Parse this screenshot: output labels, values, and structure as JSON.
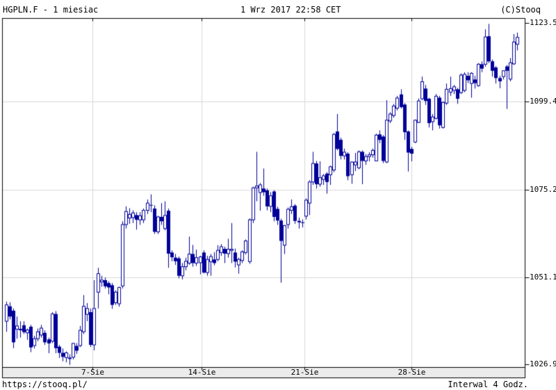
{
  "header": {
    "title": "HGPLN.F - 1 miesiac",
    "datetime": "1 Wrz 2017 22:58 CET",
    "copyright": "(C)Stooq"
  },
  "footer": {
    "url": "https://stooq.pl/",
    "interval_label": "Interwal 4 Godz."
  },
  "chart_data": {
    "type": "candlestick",
    "symbol": "HGPLN.F",
    "period": "1 miesiac",
    "interval": "4 Godz.",
    "title": "HGPLN.F - 1 miesiac",
    "y_axis": {
      "tick_labels": [
        "1123.5",
        "1099.4",
        "1075.2",
        "1051.1",
        "1026.9"
      ],
      "tick_values": [
        1123.5,
        1099.4,
        1075.2,
        1051.1,
        1026.9
      ],
      "range": [
        1026.3,
        1122.3
      ],
      "grid": true
    },
    "x_axis": {
      "tick_labels": [
        "7-Sie",
        "14-Sie",
        "21-Sie",
        "28-Sie"
      ],
      "grid": true
    },
    "colors": {
      "candle": "#000099",
      "grid": "#d8d8d8",
      "border": "#000000",
      "band_fill": "#ebebeb",
      "background": "#ffffff"
    },
    "candles_format": [
      "open",
      "high",
      "low",
      "close"
    ],
    "candles": [
      [
        1039.0,
        1044.4,
        1036.1,
        1043.5
      ],
      [
        1043.1,
        1044.2,
        1039.5,
        1040.3
      ],
      [
        1041.9,
        1042.5,
        1031.6,
        1033.2
      ],
      [
        1036.8,
        1040.3,
        1034.2,
        1037.7
      ],
      [
        1036.8,
        1039.0,
        1034.5,
        1036.8
      ],
      [
        1037.9,
        1039.0,
        1035.5,
        1036.0
      ],
      [
        1035.8,
        1037.0,
        1033.9,
        1036.6
      ],
      [
        1037.5,
        1038.0,
        1030.5,
        1031.8
      ],
      [
        1032.3,
        1035.0,
        1031.5,
        1034.2
      ],
      [
        1034.2,
        1037.0,
        1033.5,
        1036.1
      ],
      [
        1035.2,
        1038.0,
        1034.5,
        1037.1
      ],
      [
        1035.8,
        1036.5,
        1032.5,
        1033.2
      ],
      [
        1034.0,
        1034.5,
        1030.2,
        1032.9
      ],
      [
        1033.5,
        1041.5,
        1033.0,
        1041.0
      ],
      [
        1041.0,
        1041.8,
        1030.2,
        1031.6
      ],
      [
        1032.0,
        1032.5,
        1028.9,
        1030.3
      ],
      [
        1030.3,
        1031.5,
        1028.0,
        1029.2
      ],
      [
        1029.0,
        1030.7,
        1027.7,
        1030.3
      ],
      [
        1028.9,
        1029.9,
        1027.0,
        1028.9
      ],
      [
        1029.1,
        1033.0,
        1028.5,
        1032.9
      ],
      [
        1032.2,
        1033.0,
        1030.0,
        1030.9
      ],
      [
        1032.3,
        1037.7,
        1031.9,
        1036.5
      ],
      [
        1036.1,
        1046.2,
        1035.5,
        1043.1
      ],
      [
        1040.9,
        1044.0,
        1039.0,
        1042.5
      ],
      [
        1041.5,
        1042.5,
        1031.9,
        1032.5
      ],
      [
        1032.5,
        1050.3,
        1031.0,
        1042.5
      ],
      [
        1047.0,
        1053.7,
        1042.5,
        1052.1
      ],
      [
        1049.8,
        1051.5,
        1048.5,
        1050.3
      ],
      [
        1050.3,
        1051.0,
        1048.0,
        1048.6
      ],
      [
        1049.5,
        1050.0,
        1046.4,
        1048.3
      ],
      [
        1048.9,
        1049.5,
        1042.4,
        1043.5
      ],
      [
        1044.1,
        1047.5,
        1043.5,
        1047.0
      ],
      [
        1043.8,
        1048.5,
        1043.0,
        1048.3
      ],
      [
        1048.7,
        1066.5,
        1048.0,
        1065.6
      ],
      [
        1065.6,
        1070.6,
        1064.5,
        1069.2
      ],
      [
        1067.4,
        1070.1,
        1065.8,
        1068.4
      ],
      [
        1067.5,
        1069.5,
        1066.0,
        1068.8
      ],
      [
        1068.2,
        1069.0,
        1064.2,
        1066.9
      ],
      [
        1066.9,
        1069.0,
        1065.5,
        1068.0
      ],
      [
        1066.9,
        1070.0,
        1066.0,
        1069.5
      ],
      [
        1069.5,
        1072.5,
        1068.5,
        1071.5
      ],
      [
        1071.0,
        1073.9,
        1069.0,
        1070.9
      ],
      [
        1070.0,
        1070.9,
        1063.0,
        1063.6
      ],
      [
        1063.6,
        1068.0,
        1063.0,
        1067.7
      ],
      [
        1067.7,
        1071.5,
        1065.5,
        1066.5
      ],
      [
        1064.5,
        1072.0,
        1064.0,
        1068.1
      ],
      [
        1069.4,
        1070.0,
        1053.7,
        1057.6
      ],
      [
        1057.9,
        1058.5,
        1055.5,
        1056.6
      ],
      [
        1056.5,
        1057.5,
        1054.5,
        1055.5
      ],
      [
        1056.3,
        1056.8,
        1050.8,
        1051.5
      ],
      [
        1051.5,
        1055.0,
        1050.5,
        1054.0
      ],
      [
        1054.0,
        1056.5,
        1053.0,
        1055.5
      ],
      [
        1055.0,
        1062.3,
        1054.5,
        1057.5
      ],
      [
        1057.5,
        1060.0,
        1054.0,
        1055.0
      ],
      [
        1055.0,
        1058.7,
        1054.2,
        1056.5
      ],
      [
        1055.1,
        1057.0,
        1051.9,
        1056.7
      ],
      [
        1057.9,
        1058.5,
        1052.1,
        1052.4
      ],
      [
        1052.4,
        1057.0,
        1051.5,
        1056.0
      ],
      [
        1055.4,
        1057.5,
        1051.5,
        1056.8
      ],
      [
        1056.0,
        1058.0,
        1054.4,
        1055.0
      ],
      [
        1056.0,
        1059.9,
        1055.5,
        1058.5
      ],
      [
        1057.9,
        1060.2,
        1057.0,
        1059.5
      ],
      [
        1058.9,
        1059.5,
        1055.0,
        1057.6
      ],
      [
        1057.6,
        1061.7,
        1056.5,
        1058.8
      ],
      [
        1058.5,
        1066.0,
        1055.0,
        1058.8
      ],
      [
        1057.9,
        1059.0,
        1053.8,
        1055.4
      ],
      [
        1054.5,
        1056.5,
        1052.1,
        1056.0
      ],
      [
        1055.7,
        1058.5,
        1055.0,
        1058.1
      ],
      [
        1057.9,
        1061.5,
        1057.4,
        1061.1
      ],
      [
        1055.4,
        1067.3,
        1054.8,
        1066.9
      ],
      [
        1066.9,
        1076.0,
        1066.0,
        1075.7
      ],
      [
        1075.7,
        1085.6,
        1072.0,
        1076.2
      ],
      [
        1074.4,
        1077.0,
        1069.4,
        1076.5
      ],
      [
        1075.5,
        1081.0,
        1073.5,
        1074.5
      ],
      [
        1075.0,
        1075.5,
        1069.5,
        1070.6
      ],
      [
        1070.6,
        1074.5,
        1069.0,
        1073.5
      ],
      [
        1074.7,
        1075.0,
        1066.5,
        1067.7
      ],
      [
        1069.9,
        1070.5,
        1065.5,
        1066.7
      ],
      [
        1066.7,
        1067.2,
        1049.6,
        1061.1
      ],
      [
        1059.9,
        1065.5,
        1057.5,
        1065.3
      ],
      [
        1065.6,
        1070.3,
        1064.5,
        1069.8
      ],
      [
        1069.5,
        1072.5,
        1068.5,
        1070.5
      ],
      [
        1070.8,
        1071.2,
        1065.8,
        1066.6
      ],
      [
        1066.6,
        1067.5,
        1064.5,
        1066.2
      ],
      [
        1066.2,
        1067.0,
        1064.8,
        1066.0
      ],
      [
        1067.9,
        1072.8,
        1067.0,
        1072.3
      ],
      [
        1071.5,
        1077.8,
        1068.2,
        1077.3
      ],
      [
        1077.3,
        1085.6,
        1076.5,
        1082.4
      ],
      [
        1082.4,
        1083.1,
        1075.5,
        1076.7
      ],
      [
        1076.7,
        1083.0,
        1076.0,
        1078.5
      ],
      [
        1078.0,
        1079.5,
        1076.5,
        1079.0
      ],
      [
        1079.6,
        1080.0,
        1074.1,
        1077.3
      ],
      [
        1079.3,
        1081.8,
        1076.5,
        1081.5
      ],
      [
        1080.6,
        1090.8,
        1080.0,
        1090.4
      ],
      [
        1091.2,
        1096.0,
        1086.0,
        1086.4
      ],
      [
        1088.9,
        1089.5,
        1083.5,
        1084.5
      ],
      [
        1084.5,
        1086.5,
        1083.5,
        1085.5
      ],
      [
        1085.1,
        1085.5,
        1077.8,
        1078.9
      ],
      [
        1079.3,
        1083.0,
        1076.8,
        1082.8
      ],
      [
        1082.0,
        1085.3,
        1080.3,
        1082.8
      ],
      [
        1081.2,
        1086.0,
        1080.8,
        1085.6
      ],
      [
        1085.6,
        1086.0,
        1076.7,
        1083.1
      ],
      [
        1083.1,
        1085.0,
        1082.0,
        1084.3
      ],
      [
        1084.3,
        1085.5,
        1083.0,
        1084.8
      ],
      [
        1084.8,
        1086.5,
        1084.0,
        1086.0
      ],
      [
        1083.1,
        1090.6,
        1083.0,
        1090.2
      ],
      [
        1090.4,
        1091.5,
        1088.0,
        1088.9
      ],
      [
        1089.8,
        1090.2,
        1082.5,
        1083.1
      ],
      [
        1082.8,
        1099.8,
        1082.5,
        1094.3
      ],
      [
        1094.1,
        1096.5,
        1093.5,
        1096.0
      ],
      [
        1095.6,
        1098.8,
        1095.0,
        1098.2
      ],
      [
        1097.6,
        1101.0,
        1097.0,
        1100.4
      ],
      [
        1101.4,
        1102.8,
        1097.5,
        1097.9
      ],
      [
        1098.6,
        1099.0,
        1088.9,
        1091.0
      ],
      [
        1091.2,
        1091.5,
        1080.2,
        1085.4
      ],
      [
        1086.4,
        1087.0,
        1083.0,
        1085.1
      ],
      [
        1088.3,
        1094.5,
        1088.0,
        1094.3
      ],
      [
        1093.7,
        1100.3,
        1093.5,
        1099.6
      ],
      [
        1100.2,
        1106.3,
        1099.8,
        1104.9
      ],
      [
        1103.0,
        1104.0,
        1098.5,
        1099.6
      ],
      [
        1100.2,
        1100.5,
        1092.3,
        1093.5
      ],
      [
        1093.9,
        1096.0,
        1091.5,
        1095.2
      ],
      [
        1094.8,
        1101.5,
        1094.5,
        1100.9
      ],
      [
        1100.5,
        1101.0,
        1092.0,
        1092.9
      ],
      [
        1092.3,
        1099.5,
        1092.0,
        1099.2
      ],
      [
        1099.0,
        1104.4,
        1098.5,
        1102.8
      ],
      [
        1102.0,
        1106.3,
        1101.0,
        1103.0
      ],
      [
        1102.5,
        1104.0,
        1101.5,
        1103.5
      ],
      [
        1102.8,
        1103.2,
        1098.8,
        1100.2
      ],
      [
        1101.9,
        1107.2,
        1101.5,
        1106.7
      ],
      [
        1102.5,
        1107.5,
        1102.0,
        1106.9
      ],
      [
        1106.5,
        1107.5,
        1104.5,
        1105.3
      ],
      [
        1104.4,
        1107.5,
        1100.5,
        1107.2
      ],
      [
        1105.5,
        1106.5,
        1103.0,
        1104.5
      ],
      [
        1103.8,
        1110.0,
        1103.5,
        1109.7
      ],
      [
        1109.7,
        1110.5,
        1107.5,
        1108.5
      ],
      [
        1109.7,
        1119.3,
        1109.0,
        1117.2
      ],
      [
        1117.4,
        1120.8,
        1110.0,
        1110.5
      ],
      [
        1110.5,
        1111.0,
        1106.3,
        1107.9
      ],
      [
        1108.8,
        1109.2,
        1104.4,
        1105.9
      ],
      [
        1105.9,
        1106.5,
        1103.1,
        1105.0
      ],
      [
        1106.3,
        1108.0,
        1105.5,
        1107.9
      ],
      [
        1109.1,
        1109.5,
        1097.4,
        1107.9
      ],
      [
        1105.6,
        1111.4,
        1105.0,
        1110.1
      ],
      [
        1109.8,
        1118.0,
        1109.5,
        1115.8
      ],
      [
        1115.2,
        1118.4,
        1113.5,
        1117.1
      ]
    ]
  }
}
